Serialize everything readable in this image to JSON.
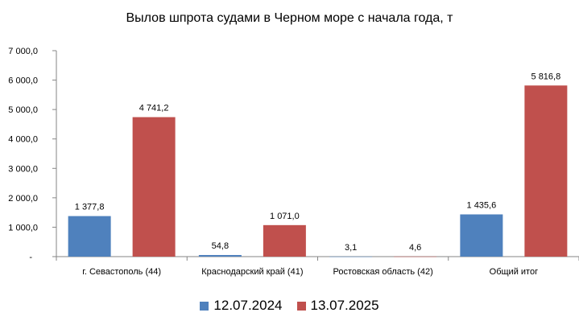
{
  "chart_data": {
    "type": "bar",
    "title": "Вылов шпрота судами в Черном море с начала  года, т",
    "categories": [
      "г. Севастополь (44)",
      "Краснодарский край (41)",
      "Ростовская область (42)",
      "Общий итог"
    ],
    "series": [
      {
        "name": "12.07.2024",
        "color": "#4f81bd",
        "values": [
          1377.8,
          54.8,
          3.1,
          1435.6
        ],
        "labels": [
          "1 377,8",
          "54,8",
          "3,1",
          "1 435,6"
        ]
      },
      {
        "name": "13.07.2025",
        "color": "#c0504d",
        "values": [
          4741.2,
          1071.0,
          4.6,
          5816.8
        ],
        "labels": [
          "4 741,2",
          "1 071,0",
          "4,6",
          "5 816,8"
        ]
      }
    ],
    "ylim": [
      0,
      7000
    ],
    "yticks": [
      0,
      1000,
      2000,
      3000,
      4000,
      5000,
      6000,
      7000
    ],
    "ytick_labels": [
      "-",
      "1 000,0",
      "2 000,0",
      "3 000,0",
      "4 000,0",
      "5 000,0",
      "6 000,0",
      "7 000,0"
    ],
    "grid": false,
    "legend_position": "bottom"
  }
}
